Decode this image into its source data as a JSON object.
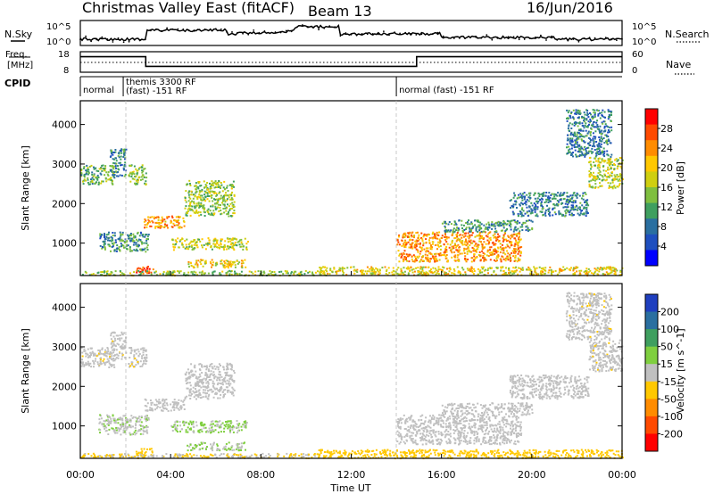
{
  "header": {
    "radar": "Christmas Valley East (fitACF)",
    "beam": "Beam 13",
    "date": "16/Jun/2016"
  },
  "noise_panel": {
    "left_label": "N.Sky",
    "right_label": "N.Search",
    "left_ticks": [
      "10^5",
      "10^0"
    ],
    "right_ticks": [
      "10^5",
      "10^0"
    ]
  },
  "freq_panel": {
    "left_label_1": "Freq.",
    "left_label_2": "[MHz]",
    "right_label": "Nave",
    "left_ticks": [
      "18",
      "8"
    ],
    "right_ticks": [
      "60",
      "0"
    ]
  },
  "cpid_panel": {
    "label": "CPID",
    "segments": [
      {
        "start_h": 0.0,
        "line1": "normal",
        "line2": ""
      },
      {
        "start_h": 1.9,
        "line1": "themis 3300 RF",
        "line2": "(fast) -151 RF"
      },
      {
        "start_h": 14.0,
        "line1": "normal (fast) -151 RF",
        "line2": ""
      }
    ]
  },
  "power_panel": {
    "ylabel": "Slant Range [km]",
    "colorbar_label": "Power [dB]",
    "colorbar_ticks": [
      "28",
      "24",
      "20",
      "16",
      "12",
      "8",
      "4"
    ],
    "colorbar_colors": [
      "#ff0000",
      "#ff4a00",
      "#ff8c00",
      "#ffc800",
      "#cfcf10",
      "#7fbf3f",
      "#3f9f5f",
      "#2a6fa0",
      "#1f4fbf",
      "#0000ff"
    ]
  },
  "velocity_panel": {
    "ylabel": "Slant Range [km]",
    "colorbar_label": "Velocity [m s^-1]",
    "colorbar_ticks": [
      "200",
      "100",
      "50",
      "15",
      "-15",
      "-50",
      "-100",
      "-200"
    ],
    "colorbar_colors": [
      "#1f3fbf",
      "#2a6fa0",
      "#3f9f5f",
      "#7fcf3f",
      "#c0c0c0",
      "#ffc800",
      "#ff8c00",
      "#ff4a00",
      "#ff0000"
    ]
  },
  "x_axis": {
    "label": "Time UT",
    "ticks": [
      "00:00",
      "04:00",
      "08:00",
      "12:00",
      "16:00",
      "20:00",
      "00:00"
    ]
  },
  "chart_data": {
    "type": "heatmap",
    "x": {
      "label": "Time UT",
      "range_h": [
        0,
        24
      ],
      "ticks": [
        "00:00",
        "04:00",
        "08:00",
        "12:00",
        "16:00",
        "20:00",
        "00:00"
      ]
    },
    "y": {
      "label": "Slant Range [km]",
      "range_km": [
        180,
        4600
      ],
      "ticks": [
        1000,
        2000,
        3000,
        4000
      ]
    },
    "frequency_mhz": [
      {
        "from_h": 0,
        "to_h": 2.9,
        "value": 16
      },
      {
        "from_h": 2.9,
        "to_h": 14.9,
        "value": 10
      },
      {
        "from_h": 14.9,
        "to_h": 24,
        "value": 16
      }
    ],
    "power_db_range": [
      0,
      30
    ],
    "velocity_range": [
      -250,
      250
    ],
    "echo_regions": [
      {
        "t0": 0.0,
        "t1": 1.5,
        "r0": 2500,
        "r1": 3000,
        "power": 12,
        "velocity": -10
      },
      {
        "t0": 2.1,
        "t1": 2.9,
        "r0": 2500,
        "r1": 3000,
        "power": 14,
        "velocity": -10
      },
      {
        "t0": 1.3,
        "t1": 2.0,
        "r0": 2700,
        "r1": 3400,
        "power": 8,
        "velocity": -10
      },
      {
        "t0": 2.8,
        "t1": 4.6,
        "r0": 1400,
        "r1": 1700,
        "power": 22,
        "velocity": -5
      },
      {
        "t0": 4.6,
        "t1": 6.8,
        "r0": 1700,
        "r1": 2600,
        "power": 14,
        "velocity": 0
      },
      {
        "t0": 0.8,
        "t1": 3.0,
        "r0": 800,
        "r1": 1300,
        "power": 10,
        "velocity": 15
      },
      {
        "t0": 4.0,
        "t1": 7.4,
        "r0": 850,
        "r1": 1150,
        "power": 16,
        "velocity": 30
      },
      {
        "t0": 4.7,
        "t1": 7.3,
        "r0": 400,
        "r1": 600,
        "power": 18,
        "velocity": 30
      },
      {
        "t0": 2.4,
        "t1": 3.2,
        "r0": 250,
        "r1": 450,
        "power": 26,
        "velocity": -60
      },
      {
        "t0": 0.0,
        "t1": 10.5,
        "r0": 200,
        "r1": 320,
        "power": 14,
        "velocity": -30
      },
      {
        "t0": 10.5,
        "t1": 24.0,
        "r0": 200,
        "r1": 420,
        "power": 18,
        "velocity": -50
      },
      {
        "t0": 14.0,
        "t1": 19.5,
        "r0": 550,
        "r1": 1300,
        "power": 22,
        "velocity": -5
      },
      {
        "t0": 16.0,
        "t1": 20.0,
        "r0": 1300,
        "r1": 1600,
        "power": 10,
        "velocity": 0
      },
      {
        "t0": 19.0,
        "t1": 22.5,
        "r0": 1700,
        "r1": 2300,
        "power": 8,
        "velocity": -5
      },
      {
        "t0": 22.5,
        "t1": 24.0,
        "r0": 2400,
        "r1": 3200,
        "power": 16,
        "velocity": -10
      },
      {
        "t0": 21.5,
        "t1": 23.5,
        "r0": 3200,
        "r1": 4400,
        "power": 8,
        "velocity": -10
      }
    ]
  }
}
